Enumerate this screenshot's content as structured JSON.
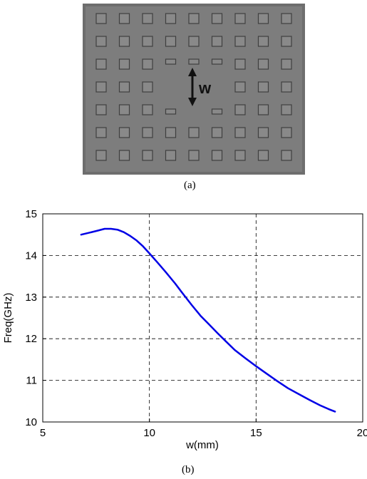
{
  "captions": {
    "a": "(a)",
    "b": "(b)"
  },
  "panel_a": {
    "grid_rows": 7,
    "grid_cols": 9,
    "dimension_label": "w",
    "colors": {
      "plate": "#7d7d7d",
      "cell": "#898989",
      "cell_border": "#3f3f3f",
      "arrow": "#111111"
    }
  },
  "chart_data": {
    "type": "line",
    "title": "",
    "xlabel": "w(mm)",
    "ylabel": "Freq(GHz)",
    "xlim": [
      5,
      20
    ],
    "ylim": [
      10,
      15
    ],
    "xticks": [
      5,
      10,
      15,
      20
    ],
    "yticks": [
      10,
      11,
      12,
      13,
      14,
      15
    ],
    "grid": true,
    "grid_style": "dashed",
    "legend": "none",
    "series": [
      {
        "color": "#0000e6",
        "x": [
          6.8,
          7.2,
          7.6,
          7.9,
          8.2,
          8.5,
          8.8,
          9.1,
          9.4,
          9.7,
          10.0,
          10.4,
          10.8,
          11.2,
          11.6,
          12.0,
          12.4,
          12.8,
          13.2,
          13.6,
          14.0,
          14.5,
          15.0,
          15.5,
          16.0,
          16.5,
          17.0,
          17.5,
          18.0,
          18.4,
          18.7
        ],
        "y": [
          14.5,
          14.55,
          14.6,
          14.64,
          14.64,
          14.62,
          14.56,
          14.47,
          14.36,
          14.22,
          14.05,
          13.82,
          13.58,
          13.33,
          13.06,
          12.8,
          12.55,
          12.34,
          12.13,
          11.93,
          11.73,
          11.53,
          11.34,
          11.16,
          10.98,
          10.81,
          10.67,
          10.53,
          10.4,
          10.31,
          10.25
        ]
      }
    ]
  }
}
